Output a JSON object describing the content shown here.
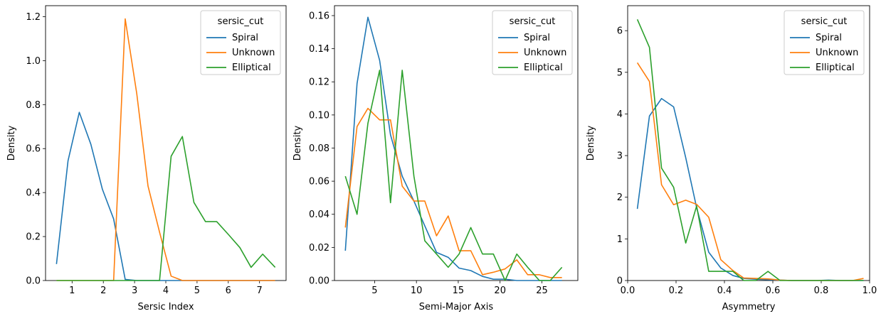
{
  "colors": {
    "Spiral": "#1f77b4",
    "Unknown": "#ff7f0e",
    "Elliptical": "#2ca02c"
  },
  "chart_data": [
    {
      "type": "line",
      "xlabel": "Sersic Index",
      "ylabel": "Density",
      "xlim": [
        0.15,
        7.85
      ],
      "ylim": [
        0,
        1.25
      ],
      "xticks": [
        1,
        2,
        3,
        4,
        5,
        6,
        7
      ],
      "xtick_labels": [
        "1",
        "2",
        "3",
        "4",
        "5",
        "6",
        "7"
      ],
      "yticks": [
        0,
        0.2,
        0.4,
        0.6,
        0.8,
        1.0,
        1.2
      ],
      "ytick_labels": [
        "0.0",
        "0.2",
        "0.4",
        "0.6",
        "0.8",
        "1.0",
        "1.2"
      ],
      "legend": {
        "title": "sersic_cut",
        "placement": "top-right",
        "entries": [
          "Spiral",
          "Unknown",
          "Elliptical"
        ]
      },
      "series": [
        {
          "name": "Spiral",
          "x": [
            0.5,
            0.87,
            1.23,
            1.6,
            1.97,
            2.33,
            2.7,
            3.07,
            3.43,
            3.8,
            4.17,
            4.53,
            4.9,
            5.27,
            5.63,
            6.0,
            6.37,
            6.73,
            7.1,
            7.5
          ],
          "y": [
            0.075,
            0.545,
            0.765,
            0.62,
            0.415,
            0.28,
            0.005,
            0,
            0,
            0,
            0,
            0,
            0,
            0,
            0,
            0,
            0,
            0,
            0,
            0
          ]
        },
        {
          "name": "Unknown",
          "x": [
            0.5,
            0.87,
            1.23,
            1.6,
            1.97,
            2.33,
            2.7,
            3.07,
            3.43,
            3.8,
            4.17,
            4.53,
            4.9,
            5.27,
            5.63,
            6.0,
            6.37,
            6.73,
            7.1,
            7.5
          ],
          "y": [
            0,
            0,
            0,
            0,
            0,
            0,
            1.19,
            0.85,
            0.43,
            0.22,
            0.02,
            0,
            0,
            0,
            0,
            0,
            0,
            0,
            0,
            0
          ]
        },
        {
          "name": "Elliptical",
          "x": [
            0.5,
            0.87,
            1.23,
            1.6,
            1.97,
            2.33,
            2.7,
            3.07,
            3.43,
            3.8,
            4.17,
            4.53,
            4.9,
            5.27,
            5.63,
            6.0,
            6.37,
            6.73,
            7.1,
            7.5
          ],
          "y": [
            0,
            0,
            0,
            0,
            0,
            0,
            0,
            0,
            0,
            0,
            0.565,
            0.655,
            0.355,
            0.268,
            0.268,
            0.21,
            0.15,
            0.06,
            0.12,
            0.06
          ]
        }
      ]
    },
    {
      "type": "line",
      "xlabel": "Semi-Major Axis",
      "ylabel": "Density",
      "xlim": [
        0.2,
        29.3
      ],
      "ylim": [
        0,
        0.166
      ],
      "xticks": [
        5,
        10,
        15,
        20,
        25
      ],
      "xtick_labels": [
        "5",
        "10",
        "15",
        "20",
        "25"
      ],
      "yticks": [
        0,
        0.02,
        0.04,
        0.06,
        0.08,
        0.1,
        0.12,
        0.14,
        0.16
      ],
      "ytick_labels": [
        "0.00",
        "0.02",
        "0.04",
        "0.06",
        "0.08",
        "0.10",
        "0.12",
        "0.14",
        "0.16"
      ],
      "legend": {
        "title": "sersic_cut",
        "placement": "top-right",
        "entries": [
          "Spiral",
          "Unknown",
          "Elliptical"
        ]
      },
      "series": [
        {
          "name": "Spiral",
          "x": [
            1.5,
            2.9,
            4.2,
            5.6,
            6.9,
            8.3,
            9.7,
            11.0,
            12.4,
            13.8,
            15.1,
            16.5,
            17.9,
            19.2,
            20.6,
            22.0,
            23.3,
            24.7,
            26.0,
            27.4
          ],
          "y": [
            0.018,
            0.119,
            0.159,
            0.133,
            0.088,
            0.063,
            0.048,
            0.033,
            0.017,
            0.014,
            0.0075,
            0.006,
            0.0025,
            0.0008,
            0.0008,
            0,
            0,
            0,
            0,
            0
          ]
        },
        {
          "name": "Unknown",
          "x": [
            1.5,
            2.9,
            4.2,
            5.6,
            6.9,
            8.3,
            9.7,
            11.0,
            12.4,
            13.8,
            15.1,
            16.5,
            17.9,
            19.2,
            20.6,
            22.0,
            23.3,
            24.7,
            26.0,
            27.4
          ],
          "y": [
            0.032,
            0.093,
            0.104,
            0.097,
            0.097,
            0.057,
            0.048,
            0.048,
            0.027,
            0.039,
            0.018,
            0.018,
            0.0035,
            0.005,
            0.007,
            0.0125,
            0.0035,
            0.0035,
            0.0018,
            0.0018
          ]
        },
        {
          "name": "Elliptical",
          "x": [
            1.5,
            2.9,
            4.2,
            5.6,
            6.9,
            8.3,
            9.7,
            11.0,
            12.4,
            13.8,
            15.1,
            16.5,
            17.9,
            19.2,
            20.6,
            22.0,
            23.3,
            24.7,
            26.0,
            27.4
          ],
          "y": [
            0.063,
            0.04,
            0.095,
            0.127,
            0.047,
            0.127,
            0.063,
            0.024,
            0.016,
            0.008,
            0.016,
            0.032,
            0.016,
            0.016,
            0,
            0.016,
            0.008,
            0,
            0,
            0.008
          ]
        }
      ]
    },
    {
      "type": "line",
      "xlabel": "Asymmetry",
      "ylabel": "Density",
      "xlim": [
        0,
        1.0
      ],
      "ylim": [
        0,
        6.6
      ],
      "xticks": [
        0.0,
        0.2,
        0.4,
        0.6,
        0.8,
        1.0
      ],
      "xtick_labels": [
        "0.0",
        "0.2",
        "0.4",
        "0.6",
        "0.8",
        "1.0"
      ],
      "yticks": [
        0,
        1,
        2,
        3,
        4,
        5,
        6
      ],
      "ytick_labels": [
        "0",
        "1",
        "2",
        "3",
        "4",
        "5",
        "6"
      ],
      "legend": {
        "title": "sersic_cut",
        "placement": "top-right",
        "entries": [
          "Spiral",
          "Unknown",
          "Elliptical"
        ]
      },
      "series": [
        {
          "name": "Spiral",
          "x": [
            0.04,
            0.09,
            0.14,
            0.19,
            0.24,
            0.285,
            0.335,
            0.385,
            0.435,
            0.48,
            0.53,
            0.58,
            0.63,
            0.68,
            0.73,
            0.78,
            0.83,
            0.88,
            0.93,
            0.975
          ],
          "y": [
            1.72,
            3.95,
            4.37,
            4.17,
            2.95,
            1.75,
            0.68,
            0.3,
            0.12,
            0.05,
            0.03,
            0.02,
            0.01,
            0,
            0,
            0,
            0.01,
            0,
            0,
            0
          ]
        },
        {
          "name": "Unknown",
          "x": [
            0.04,
            0.09,
            0.14,
            0.19,
            0.24,
            0.285,
            0.335,
            0.385,
            0.435,
            0.48,
            0.53,
            0.58,
            0.63,
            0.68,
            0.73,
            0.78,
            0.83,
            0.88,
            0.93,
            0.975
          ],
          "y": [
            5.23,
            4.78,
            2.3,
            1.82,
            1.93,
            1.83,
            1.52,
            0.5,
            0.24,
            0.06,
            0.05,
            0.04,
            0.01,
            0,
            0,
            0,
            0,
            0,
            0,
            0.05
          ]
        },
        {
          "name": "Elliptical",
          "x": [
            0.04,
            0.09,
            0.14,
            0.19,
            0.24,
            0.285,
            0.335,
            0.385,
            0.435,
            0.48,
            0.53,
            0.58,
            0.63,
            0.68,
            0.73,
            0.78,
            0.83,
            0.88,
            0.93,
            0.975
          ],
          "y": [
            6.27,
            5.6,
            2.7,
            2.24,
            0.9,
            1.79,
            0.22,
            0.22,
            0.22,
            0,
            0,
            0.22,
            0,
            0,
            0,
            0,
            0,
            0,
            0,
            0
          ]
        }
      ]
    }
  ]
}
